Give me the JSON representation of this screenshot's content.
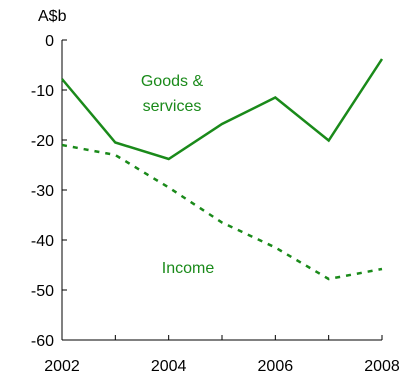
{
  "chart_data": {
    "type": "line",
    "unit_label": "A$b",
    "x": [
      2002,
      2003,
      2004,
      2005,
      2006,
      2007,
      2008
    ],
    "xticks": [
      "2002",
      "2004",
      "2006",
      "2008"
    ],
    "yticks": [
      "0",
      "-10",
      "-20",
      "-30",
      "-40",
      "-50",
      "-60"
    ],
    "ylim": [
      -60,
      0
    ],
    "xlim": [
      2002,
      2008
    ],
    "grid": false,
    "series": [
      {
        "name": "Goods & services",
        "label_lines": [
          "Goods &",
          "services"
        ],
        "style": "solid",
        "color": "#1a8a1a",
        "values": [
          -7.8,
          -20.5,
          -23.8,
          -16.8,
          -11.5,
          -20.1,
          -3.8
        ]
      },
      {
        "name": "Income",
        "label_lines": [
          "Income"
        ],
        "style": "dashed",
        "color": "#1a8a1a",
        "values": [
          -21.0,
          -23.0,
          -29.5,
          -36.5,
          -41.5,
          -47.8,
          -45.8
        ]
      }
    ]
  }
}
